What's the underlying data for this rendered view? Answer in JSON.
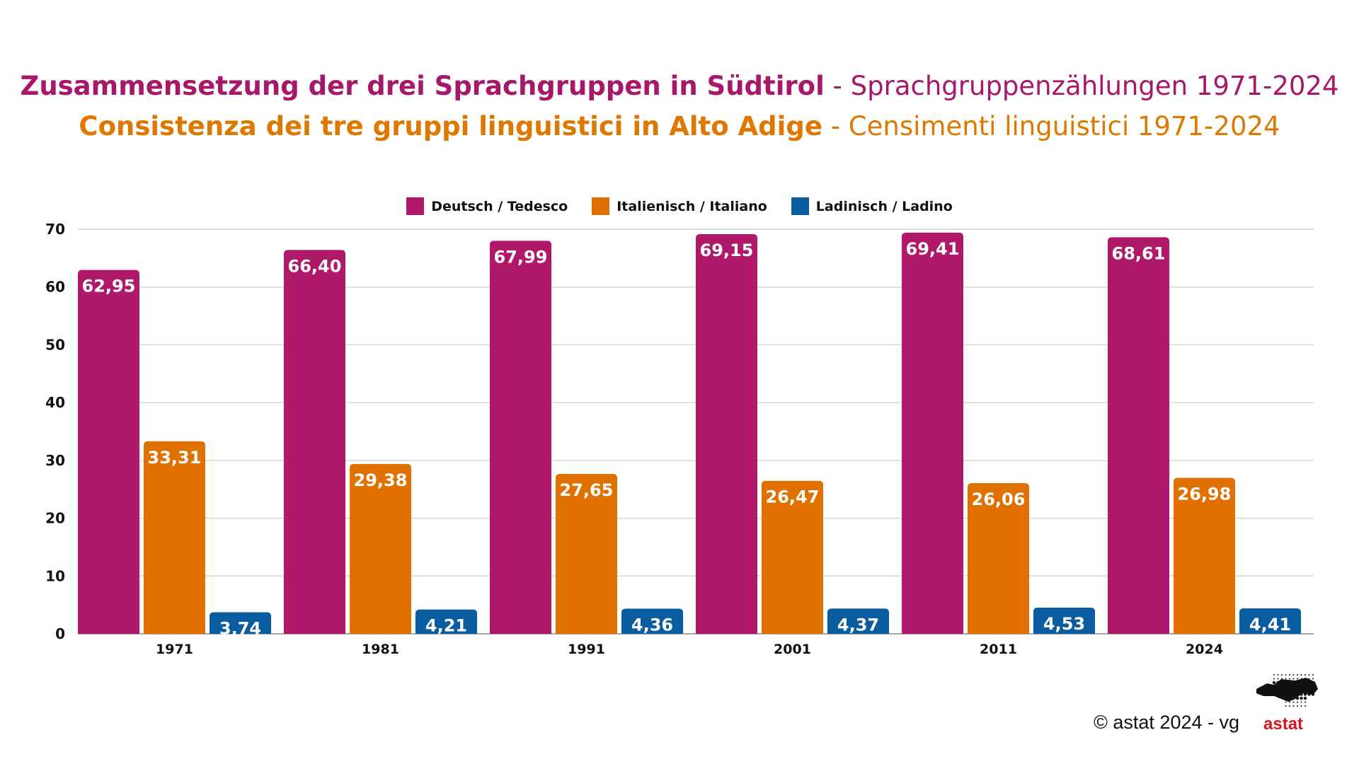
{
  "title": {
    "de_bold": "Zusammensetzung der drei Sprachgruppen in Südtirol",
    "de_rest": " - Sprachgruppenzählungen 1971-2024",
    "it_bold": "Consistenza dei tre gruppi linguistici in Alto Adige",
    "it_rest": " - Censimenti linguistici 1971-2024"
  },
  "footer": {
    "copyright": "© astat 2024 - vg",
    "logo_text": "astat"
  },
  "chart_data": {
    "type": "bar",
    "categories": [
      "1971",
      "1981",
      "1991",
      "2001",
      "2011",
      "2024"
    ],
    "series": [
      {
        "name": "Deutsch / Tedesco",
        "color": "#B0186A",
        "values": [
          62.95,
          66.4,
          67.99,
          69.15,
          69.41,
          68.61
        ],
        "labels": [
          "62,95",
          "66,40",
          "67,99",
          "69,15",
          "69,41",
          "68,61"
        ]
      },
      {
        "name": "Italienisch / Italiano",
        "color": "#E07000",
        "values": [
          33.31,
          29.38,
          27.65,
          26.47,
          26.06,
          26.98
        ],
        "labels": [
          "33,31",
          "29,38",
          "27,65",
          "26,47",
          "26,06",
          "26,98"
        ]
      },
      {
        "name": "Ladinisch / Ladino",
        "color": "#0A5CA0",
        "values": [
          3.74,
          4.21,
          4.36,
          4.37,
          4.53,
          4.41
        ],
        "labels": [
          "3,74",
          "4,21",
          "4,36",
          "4,37",
          "4,53",
          "4,41"
        ]
      }
    ],
    "ylim": [
      0,
      70
    ],
    "yticks": [
      "0",
      "10",
      "20",
      "30",
      "40",
      "50",
      "60",
      "70"
    ],
    "grid": true,
    "legend": "top-center"
  }
}
